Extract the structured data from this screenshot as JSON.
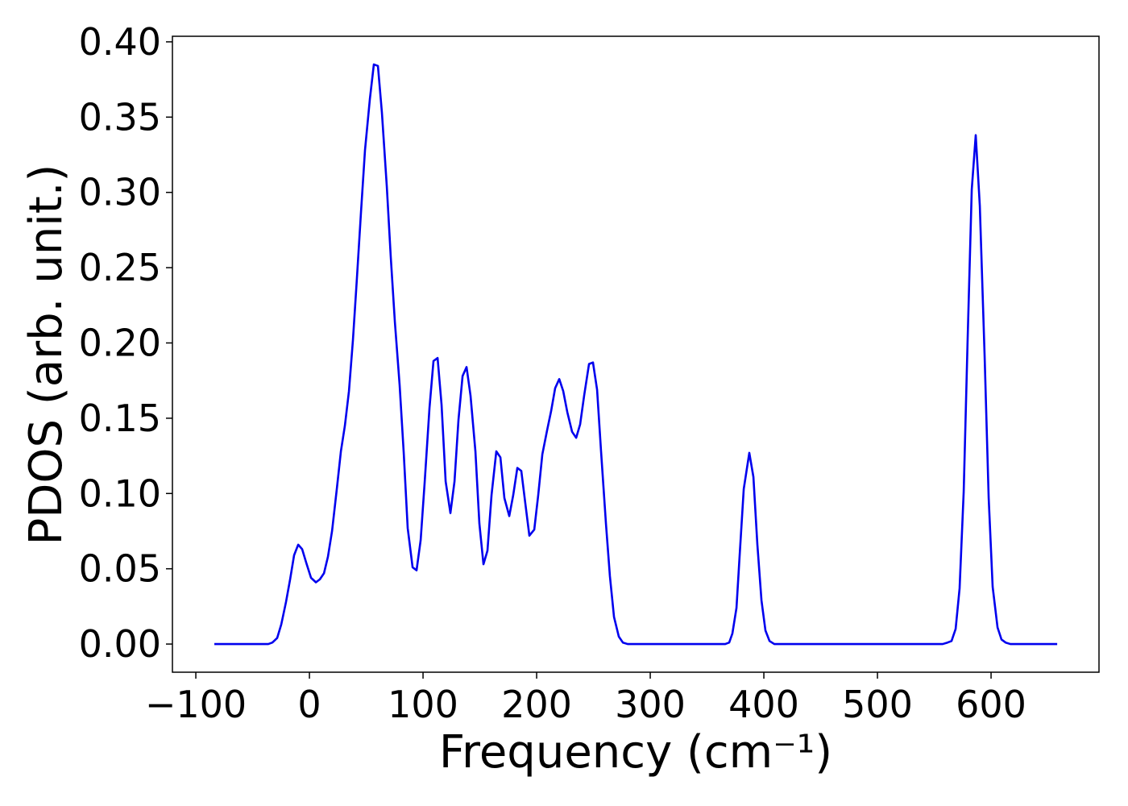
{
  "chart_data": {
    "type": "line",
    "x_label": "Frequency (cm⁻¹)",
    "y_label": "PDOS (arb. unit.)",
    "xlim": [
      -120.6,
      695
    ],
    "ylim": [
      -0.0187,
      0.4037
    ],
    "xticks": [
      {
        "value": -100,
        "label": "−100"
      },
      0,
      100,
      200,
      300,
      400,
      500,
      600
    ],
    "yticks": [
      {
        "value": 0,
        "label": "0.00"
      },
      {
        "value": 0.05,
        "label": "0.05"
      },
      {
        "value": 0.1,
        "label": "0.10"
      },
      {
        "value": 0.15,
        "label": "0.15"
      },
      {
        "value": 0.2,
        "label": "0.20"
      },
      {
        "value": 0.25,
        "label": "0.25"
      },
      {
        "value": 0.3,
        "label": "0.30"
      },
      {
        "value": 0.35,
        "label": "0.35"
      },
      {
        "value": 0.4,
        "label": "0.40"
      }
    ],
    "grid": false,
    "series": [
      {
        "color": "#0000ee",
        "x": [
          -83.7,
          -36.2,
          -32.6,
          -28.4,
          -24.8,
          -20.6,
          -17.0,
          -13.5,
          -9.9,
          -6.4,
          -2.8,
          1.4,
          5.7,
          9.2,
          12.8,
          16.3,
          19.9,
          24.1,
          27.7,
          31.2,
          34.8,
          38.3,
          41.8,
          45.4,
          48.9,
          53.2,
          56.7,
          60.3,
          63.8,
          68.1,
          71.6,
          75.2,
          79.4,
          83.0,
          86.5,
          90.8,
          94.3,
          97.9,
          101.4,
          105.7,
          109.2,
          112.8,
          116.3,
          119.9,
          124.1,
          127.7,
          131.2,
          134.8,
          138.3,
          141.8,
          146.1,
          149.6,
          153.2,
          156.7,
          160.3,
          164.5,
          168.1,
          171.6,
          175.9,
          179.4,
          183.0,
          186.5,
          190.1,
          193.6,
          197.9,
          201.4,
          205.0,
          209.2,
          212.8,
          216.3,
          219.9,
          223.4,
          227.0,
          231.2,
          234.8,
          238.3,
          241.8,
          246.1,
          249.6,
          253.2,
          256.7,
          261.0,
          264.5,
          268.1,
          272.3,
          275.9,
          280.1,
          366.0,
          369.5,
          372.3,
          375.9,
          378.7,
          382.3,
          387.2,
          390.8,
          394.3,
          397.9,
          401.4,
          405.0,
          409.2,
          557.4,
          561.7,
          565.2,
          568.8,
          572.3,
          575.9,
          579.4,
          583.0,
          586.5,
          590.1,
          594.3,
          597.9,
          601.4,
          605.7,
          609.2,
          612.8,
          617.0,
          658.2
        ],
        "values": [
          0,
          0,
          0.001,
          0.004,
          0.013,
          0.028,
          0.043,
          0.059,
          0.066,
          0.063,
          0.054,
          0.044,
          0.041,
          0.043,
          0.047,
          0.058,
          0.075,
          0.103,
          0.128,
          0.145,
          0.168,
          0.202,
          0.243,
          0.287,
          0.328,
          0.362,
          0.385,
          0.384,
          0.353,
          0.304,
          0.257,
          0.214,
          0.172,
          0.127,
          0.077,
          0.051,
          0.049,
          0.069,
          0.107,
          0.157,
          0.188,
          0.19,
          0.159,
          0.108,
          0.087,
          0.108,
          0.149,
          0.178,
          0.184,
          0.165,
          0.128,
          0.08,
          0.053,
          0.062,
          0.099,
          0.128,
          0.124,
          0.097,
          0.085,
          0.099,
          0.117,
          0.115,
          0.093,
          0.072,
          0.076,
          0.099,
          0.126,
          0.142,
          0.155,
          0.17,
          0.176,
          0.168,
          0.154,
          0.141,
          0.137,
          0.146,
          0.165,
          0.186,
          0.187,
          0.169,
          0.128,
          0.08,
          0.045,
          0.018,
          0.005,
          0.001,
          0,
          0,
          0.001,
          0.007,
          0.024,
          0.059,
          0.103,
          0.127,
          0.111,
          0.066,
          0.029,
          0.009,
          0.002,
          0,
          0,
          0.001,
          0.002,
          0.01,
          0.037,
          0.101,
          0.203,
          0.302,
          0.338,
          0.291,
          0.192,
          0.097,
          0.038,
          0.011,
          0.003,
          0.001,
          0,
          0
        ]
      }
    ]
  }
}
